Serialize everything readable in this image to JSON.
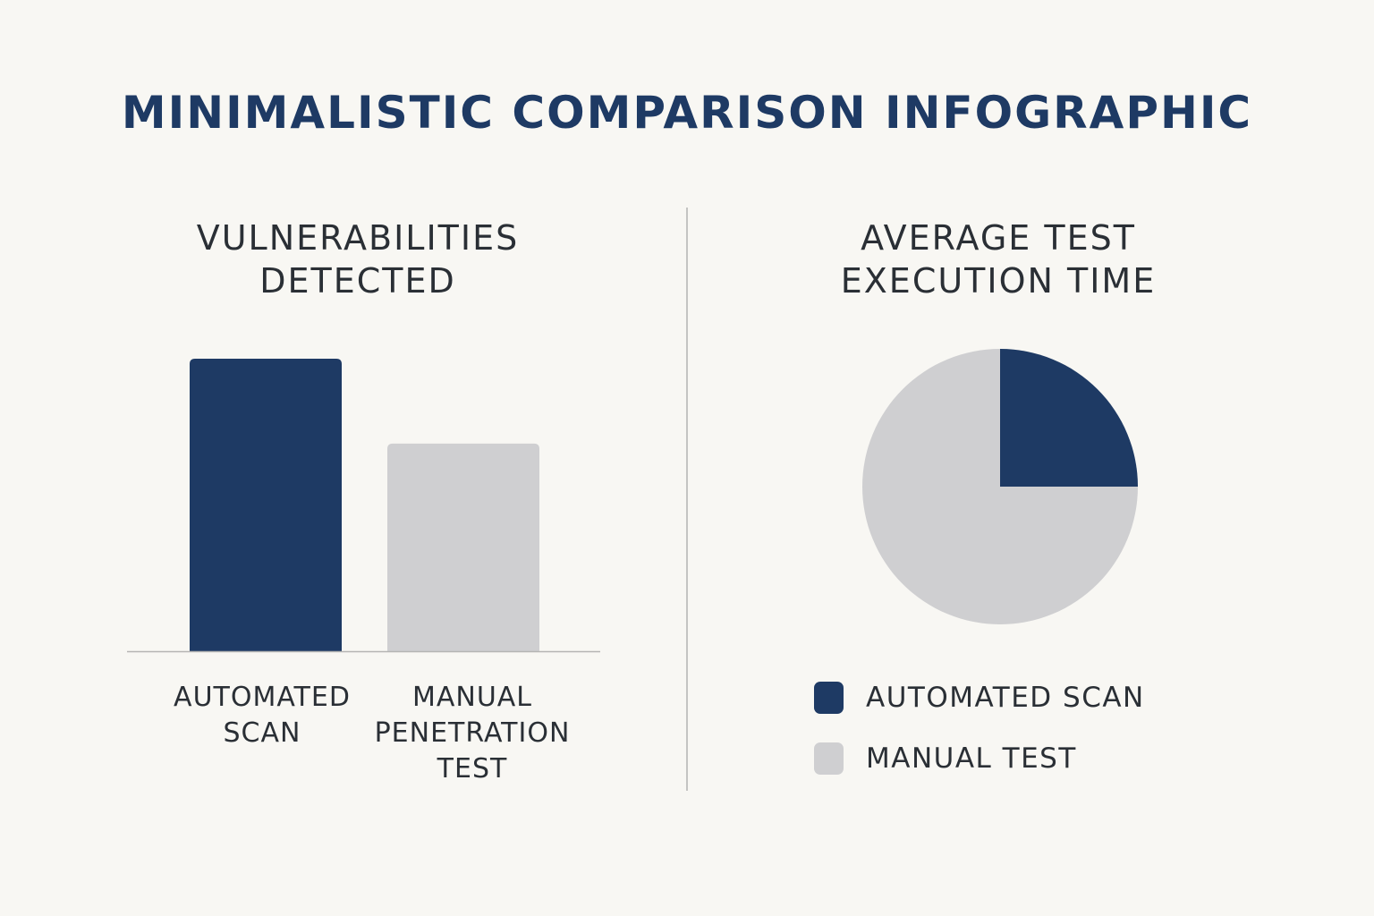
{
  "title": "MINIMALISTIC COMPARISON INFOGRAPHIC",
  "colors": {
    "background": "#f8f7f3",
    "automated": "#1e3a64",
    "manual": "#cfcfd1",
    "axis": "#b5b5b3",
    "text": "#2a2f35"
  },
  "chart_data": [
    {
      "type": "bar",
      "title": [
        "VULNERABILITIES",
        "DETECTED"
      ],
      "categories": [
        [
          "AUTOMATED",
          "SCAN"
        ],
        [
          "MANUAL",
          "PENETRATION",
          "TEST"
        ]
      ],
      "values": [
        100,
        71
      ],
      "ylim": [
        0,
        100
      ],
      "colors": [
        "#1e3a64",
        "#cfcfd1"
      ],
      "grid": false
    },
    {
      "type": "pie",
      "title": [
        "AVERAGE TEST",
        "EXECUTION TIME"
      ],
      "labels": [
        "AUTOMATED SCAN",
        "MANUAL TEST"
      ],
      "values": [
        25,
        75
      ],
      "colors": [
        "#1e3a64",
        "#cfcfd1"
      ],
      "legend_position": "bottom"
    }
  ]
}
